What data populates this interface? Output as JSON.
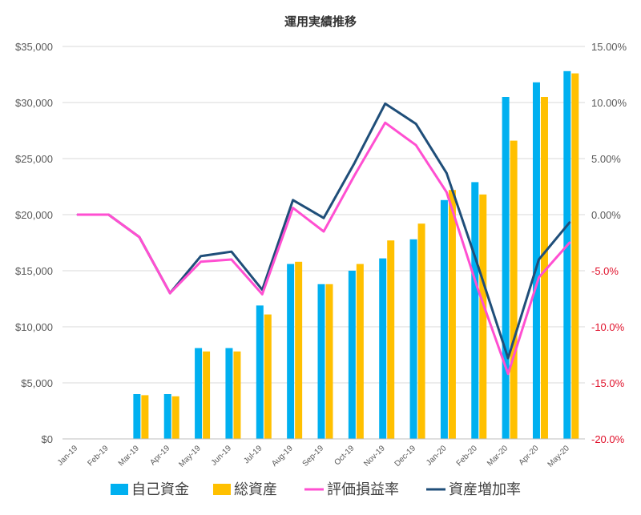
{
  "chart_data": {
    "type": "bar+line",
    "title": "運用実績推移",
    "categories": [
      "Jan-19",
      "Feb-19",
      "Mar-19",
      "Apr-19",
      "May-19",
      "Jun-19",
      "Jul-19",
      "Aug-19",
      "Sep-19",
      "Oct-19",
      "Nov-19",
      "Dec-19",
      "Jan-20",
      "Feb-20",
      "Mar-20",
      "Apr-20",
      "May-20"
    ],
    "y_left": {
      "min": 0,
      "max": 35000,
      "step": 5000,
      "tick_labels": [
        "$0",
        "$5,000",
        "$10,000",
        "$15,000",
        "$20,000",
        "$25,000",
        "$30,000",
        "$35,000"
      ]
    },
    "y_right": {
      "min": -20,
      "max": 15,
      "step": 5,
      "tick_labels": [
        "-20.0%",
        "-15.0%",
        "-10.0%",
        "-5.0%",
        "0.00%",
        "5.00%",
        "10.00%",
        "15.00%"
      ]
    },
    "bar_series": [
      {
        "name": "自己資金",
        "color": "#00b0f0",
        "values": [
          0,
          0,
          4000,
          4000,
          8100,
          8100,
          11900,
          15600,
          13800,
          15000,
          16100,
          17800,
          21300,
          22900,
          30500,
          31800,
          32800
        ]
      },
      {
        "name": "総資産",
        "color": "#ffc000",
        "values": [
          0,
          0,
          3900,
          3800,
          7800,
          7800,
          11100,
          15800,
          13800,
          15600,
          17700,
          19200,
          22200,
          21800,
          26600,
          30500,
          32600
        ]
      }
    ],
    "line_series": [
      {
        "name": "評価損益率",
        "color": "#ff4fd1",
        "values": [
          0.0,
          0.0,
          -2.0,
          -7.0,
          -4.2,
          -4.0,
          -7.1,
          0.6,
          -1.5,
          3.5,
          8.2,
          6.2,
          2.0,
          -6.5,
          -14.2,
          -5.6,
          -2.5
        ]
      },
      {
        "name": "資産増加率",
        "color": "#1f4e79",
        "values": [
          0.0,
          0.0,
          -2.0,
          -7.0,
          -3.7,
          -3.3,
          -6.7,
          1.3,
          -0.3,
          4.6,
          9.9,
          8.1,
          3.7,
          -4.4,
          -12.8,
          -4.0,
          -0.7
        ]
      }
    ],
    "grid": true,
    "legend_position": "bottom"
  }
}
